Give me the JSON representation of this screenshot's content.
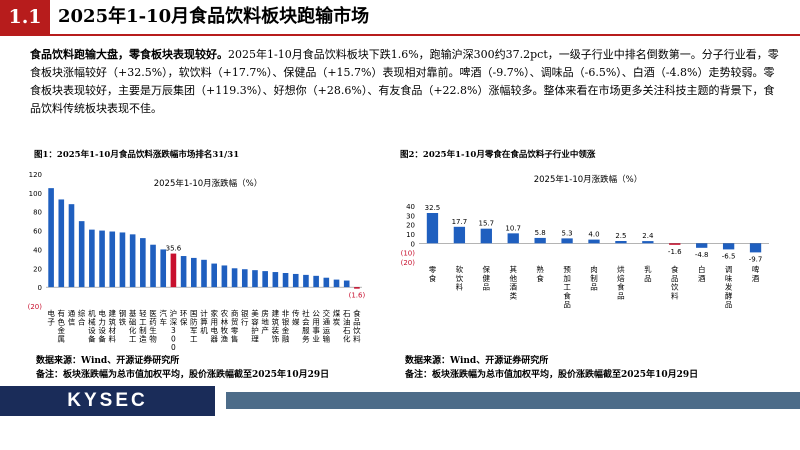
{
  "header": {
    "num": "1.1",
    "title": "2025年1-10月食品饮料板块跑输市场"
  },
  "summary": {
    "bold": "食品饮料跑输大盘，零食板块表现较好。",
    "text": "2025年1-10月食品饮料板块下跌1.6%，跑输沪深300约37.2pct，一级子行业中排名倒数第一。分子行业看，零食板块涨幅较好（+32.5%），软饮料（+17.7%）、保健品（+15.7%）表现相对靠前。啤酒（-9.7%）、调味品（-6.5%）、白酒（-4.8%）走势较弱。零食板块表现较好，主要是万辰集团（+119.3%）、好想你（+28.6%）、有友食品（+22.8%）涨幅较多。整体来看在市场更多关注科技主题的背景下，食品饮料传统板块表现不佳。"
  },
  "fig1": {
    "title": "图1：2025年1-10月食品饮料涨跌幅市场排名31/31"
  },
  "fig2": {
    "title": "图2：2025年1-10月零食在食品饮料子行业中领涨"
  },
  "note1": {
    "source": "数据来源：Wind、开源证券研究所",
    "remark": "备注：板块涨跌幅为总市值加权平均，股价涨跌幅截至2025年10月29日"
  },
  "note2": {
    "source": "数据来源：Wind、开源证券研究所",
    "remark": "备注：板块涨跌幅为总市值加权平均，股价涨跌幅截至2025年10月29日"
  },
  "footer": {
    "logo": "KYSEC"
  },
  "colors": {
    "accent": "#b71c1c",
    "bar": "#1f5fbf",
    "navy": "#1a2c59",
    "slate": "#4d6c89"
  },
  "chart_data": [
    {
      "type": "bar",
      "title": "2025年1-10月涨跌幅（%）",
      "categories": [
        "电子",
        "有色金属",
        "通信",
        "综合",
        "机械设备",
        "电力设备",
        "建筑材料",
        "钢铁",
        "基础化工",
        "轻工制造",
        "医药生物",
        "汽车",
        "沪深300",
        "环保",
        "国防军工",
        "计算机",
        "家用电器",
        "农林牧渔",
        "商贸零售",
        "银行",
        "美容护理",
        "房地产",
        "建筑装饰",
        "非银金融",
        "传媒",
        "社会服务",
        "公用事业",
        "交通运输",
        "煤炭",
        "石油石化",
        "食品饮料"
      ],
      "values": [
        105,
        93,
        88,
        70,
        61,
        60,
        59,
        58,
        56,
        52,
        45,
        40,
        35.6,
        33,
        31,
        29,
        25,
        23,
        20,
        19,
        18,
        17,
        16,
        15,
        14,
        13,
        12,
        10,
        8,
        7,
        -1.6
      ],
      "highlight": {
        "沪深300": "#c8102e",
        "食品饮料": "#c8102e"
      },
      "data_labels": {
        "沪深300": "35.6",
        "食品饮料": "(1.6)"
      },
      "ylim": [
        -20,
        120
      ],
      "yticks": [
        -20,
        0,
        20,
        40,
        60,
        80,
        100,
        120
      ],
      "ytick_labels": [
        "(20)",
        "0",
        "20",
        "40",
        "60",
        "80",
        "100",
        "120"
      ]
    },
    {
      "type": "bar",
      "title": "2025年1-10月涨跌幅（%）",
      "categories": [
        "零食",
        "软饮料",
        "保健品",
        "其他酒类",
        "熟食",
        "预加工食品",
        "肉制品",
        "烘焙食品",
        "乳品",
        "食品饮料",
        "白酒",
        "调味发酵品",
        "啤酒"
      ],
      "values": [
        32.5,
        17.7,
        15.7,
        10.7,
        5.8,
        5.3,
        4.0,
        2.5,
        2.4,
        -1.6,
        -4.8,
        -6.5,
        -9.7
      ],
      "data_labels": [
        "32.5",
        "17.7",
        "15.7",
        "10.7",
        "5.8",
        "5.3",
        "4.0",
        "2.5",
        "2.4",
        "-1.6",
        "-4.8",
        "-6.5",
        "-9.7"
      ],
      "highlight": {
        "食品饮料": "#c8102e"
      },
      "ylim": [
        -20,
        40
      ],
      "yticks": [
        -20,
        -10,
        0,
        10,
        20,
        30,
        40
      ],
      "ytick_labels": [
        "(20)",
        "(10)",
        "0",
        "10",
        "20",
        "30",
        "40"
      ]
    }
  ]
}
